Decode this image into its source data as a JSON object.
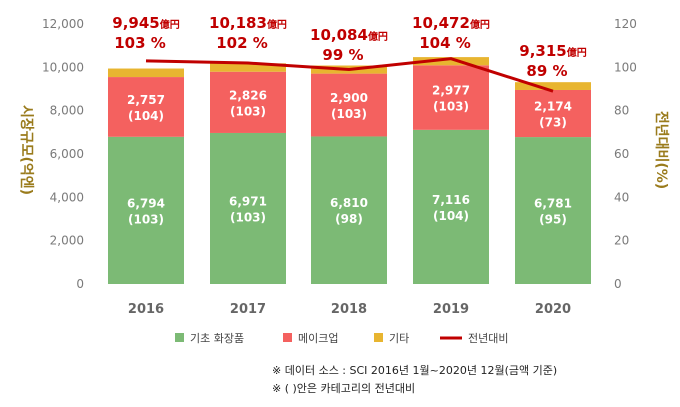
{
  "chart_data": {
    "type": "bar",
    "stacked": true,
    "categories": [
      "2016",
      "2017",
      "2018",
      "2019",
      "2020"
    ],
    "series": [
      {
        "name": "기초 화장품",
        "color": "#7cba75",
        "values": [
          6794,
          6971,
          6810,
          7116,
          6781
        ],
        "labels": [
          "6,794",
          "6,971",
          "6,810",
          "7,116",
          "6,781"
        ],
        "sublabels": [
          "(103)",
          "(103)",
          "(98)",
          "(104)",
          "(95)"
        ]
      },
      {
        "name": "메이크업",
        "color": "#f4615f",
        "values": [
          2757,
          2826,
          2900,
          2977,
          2174
        ],
        "labels": [
          "2,757",
          "2,826",
          "2,900",
          "2,977",
          "2,174"
        ],
        "sublabels": [
          "(104)",
          "(103)",
          "(103)",
          "(103)",
          "(73)"
        ]
      },
      {
        "name": "기타",
        "color": "#e8b530",
        "values": [
          394,
          386,
          374,
          379,
          360
        ]
      }
    ],
    "line": {
      "name": "전년대비",
      "color": "#c00000",
      "values": [
        103,
        102,
        99,
        104,
        89
      ]
    },
    "totals": [
      "9,945",
      "10,183",
      "10,084",
      "10,472",
      "9,315"
    ],
    "total_unit": "億円",
    "ratio_labels": [
      "103 %",
      "102 %",
      "99 %",
      "104 %",
      "89 %"
    ],
    "ylabel": "시장규모(억엔)",
    "y2label": "전년대비(%)",
    "ylim": [
      0,
      12000
    ],
    "y2lim": [
      0,
      120
    ],
    "yticks": [
      "0",
      "2,000",
      "4,000",
      "6,000",
      "8,000",
      "10,000",
      "12,000"
    ],
    "y2ticks": [
      "0",
      "20",
      "40",
      "60",
      "80",
      "100",
      "120"
    ],
    "legend_position": "bottom",
    "notes": [
      "※ 데이터 소스 : SCI    2016년 1월~2020년 12월(금액 기준)",
      "※ ( )안은 카테고리의 전년대비"
    ]
  }
}
